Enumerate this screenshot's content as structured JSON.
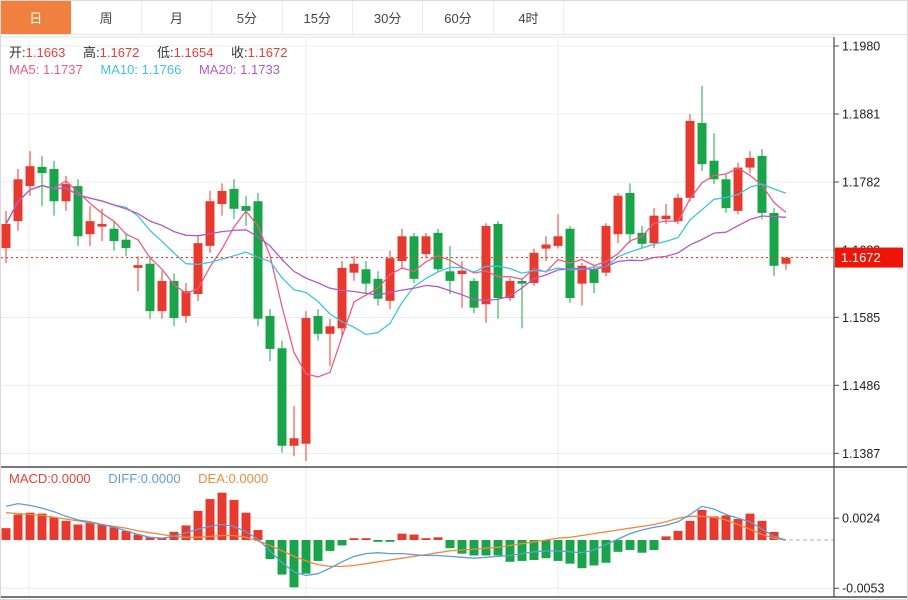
{
  "tabs": {
    "items": [
      {
        "id": "tab-day",
        "label": "日",
        "selected": true
      },
      {
        "id": "tab-week",
        "label": "周",
        "selected": false
      },
      {
        "id": "tab-month",
        "label": "月",
        "selected": false
      },
      {
        "id": "tab-5min",
        "label": "5分",
        "selected": false
      },
      {
        "id": "tab-15min",
        "label": "15分",
        "selected": false
      },
      {
        "id": "tab-30min",
        "label": "30分",
        "selected": false
      },
      {
        "id": "tab-60min",
        "label": "60分",
        "selected": false
      },
      {
        "id": "tab-4hour",
        "label": "4时",
        "selected": false
      }
    ]
  },
  "quote": {
    "open_label": "开:",
    "open": "1.1663",
    "high_label": "高:",
    "high": "1.1672",
    "low_label": "低:",
    "low": "1.1654",
    "close_label": "收:",
    "close": "1.1672"
  },
  "ma_readout": {
    "ma5_label": "MA5:",
    "ma5": "1.1737",
    "ma10_label": "MA10:",
    "ma10": "1.1766",
    "ma20_label": "MA20:",
    "ma20": "1.1733"
  },
  "macd_readout": {
    "macd_label": "MACD:",
    "macd": "0.0000",
    "diff_label": "DIFF:",
    "diff": "0.0000",
    "dea_label": "DEA:",
    "dea": "0.0000"
  },
  "colors": {
    "up": "#e8392e",
    "down": "#1aa449",
    "value_red": "#e2413a",
    "ma5": "#ec5c86",
    "ma10": "#42c3dc",
    "ma20": "#b25cc4",
    "diff_line": "#5f9dd8",
    "dea_line": "#ee8a3e",
    "tab_selected_bg": "#f0803f",
    "price_tag_bg": "#ec1508",
    "price_tag_text": "#ffffff",
    "grid": "#ececec",
    "axis": "#4a4a4a",
    "axis_text": "#222222",
    "dotted_price_line": "#f23b2e",
    "macd_zero_dash": "#a9c6d7"
  },
  "chart_data": {
    "type": "candlestick+macd",
    "title": "",
    "x_axis_labels": [],
    "main": {
      "y_axis_labels": [
        "1.1980",
        "1.1881",
        "1.1782",
        "1.1683",
        "1.1585",
        "1.1486",
        "1.1387"
      ],
      "current_price": "1.1672",
      "ma_periods": [
        5,
        10,
        20
      ],
      "legend": {
        "up_means": "rise(red)",
        "down_means": "fall(green)"
      },
      "candles_ohlc": [
        [
          1.1686,
          1.174,
          1.1664,
          1.1721
        ],
        [
          1.1725,
          1.1801,
          1.1711,
          1.1786
        ],
        [
          1.1776,
          1.1827,
          1.1762,
          1.1805
        ],
        [
          1.1804,
          1.182,
          1.1747,
          1.1795
        ],
        [
          1.1801,
          1.1813,
          1.1733,
          1.1754
        ],
        [
          1.1754,
          1.1791,
          1.174,
          1.1779
        ],
        [
          1.1776,
          1.1786,
          1.1689,
          1.1703
        ],
        [
          1.1706,
          1.1747,
          1.1689,
          1.1725
        ],
        [
          1.1717,
          1.1743,
          1.1696,
          1.1721
        ],
        [
          1.1714,
          1.1725,
          1.1682,
          1.1696
        ],
        [
          1.1698,
          1.1708,
          1.1674,
          1.1686
        ],
        [
          1.1657,
          1.1674,
          1.1623,
          1.1661
        ],
        [
          1.1663,
          1.1674,
          1.1583,
          1.1594
        ],
        [
          1.1594,
          1.1652,
          1.1583,
          1.1638
        ],
        [
          1.1638,
          1.1649,
          1.1572,
          1.1584
        ],
        [
          1.1587,
          1.1635,
          1.1577,
          1.1623
        ],
        [
          1.1619,
          1.1703,
          1.1609,
          1.1693
        ],
        [
          1.1689,
          1.1769,
          1.1679,
          1.1754
        ],
        [
          1.175,
          1.178,
          1.1733,
          1.1769
        ],
        [
          1.1772,
          1.1786,
          1.1728,
          1.1743
        ],
        [
          1.1747,
          1.1762,
          1.1718,
          1.174
        ],
        [
          1.1754,
          1.1766,
          1.1572,
          1.1583
        ],
        [
          1.1587,
          1.1597,
          1.1521,
          1.1539
        ],
        [
          1.154,
          1.1551,
          1.1388,
          1.1398
        ],
        [
          1.1398,
          1.1456,
          1.1383,
          1.1409
        ],
        [
          1.1401,
          1.1594,
          1.1376,
          1.1584
        ],
        [
          1.1587,
          1.1597,
          1.1551,
          1.1561
        ],
        [
          1.1561,
          1.1583,
          1.1514,
          1.1572
        ],
        [
          1.1569,
          1.1667,
          1.1558,
          1.1657
        ],
        [
          1.165,
          1.1674,
          1.1638,
          1.1663
        ],
        [
          1.1655,
          1.1667,
          1.162,
          1.1634
        ],
        [
          1.1641,
          1.1652,
          1.1602,
          1.1612
        ],
        [
          1.1609,
          1.1682,
          1.1597,
          1.1671
        ],
        [
          1.1667,
          1.1714,
          1.1655,
          1.1703
        ],
        [
          1.1703,
          1.1708,
          1.1635,
          1.1641
        ],
        [
          1.1677,
          1.1708,
          1.1671,
          1.1703
        ],
        [
          1.1708,
          1.1714,
          1.165,
          1.1655
        ],
        [
          1.1652,
          1.1689,
          1.1619,
          1.1638
        ],
        [
          1.1648,
          1.1667,
          1.1599,
          1.1653
        ],
        [
          1.1638,
          1.1642,
          1.1591,
          1.1599
        ],
        [
          1.1604,
          1.1722,
          1.1577,
          1.1718
        ],
        [
          1.1721,
          1.1725,
          1.1583,
          1.1613
        ],
        [
          1.1613,
          1.1642,
          1.1609,
          1.1638
        ],
        [
          1.1638,
          1.1642,
          1.1569,
          1.1634
        ],
        [
          1.1635,
          1.1685,
          1.1631,
          1.1679
        ],
        [
          1.1685,
          1.1703,
          1.1667,
          1.1691
        ],
        [
          1.1689,
          1.1735,
          1.1685,
          1.1703
        ],
        [
          1.1714,
          1.1718,
          1.1606,
          1.1613
        ],
        [
          1.1634,
          1.1664,
          1.1602,
          1.166
        ],
        [
          1.1655,
          1.166,
          1.162,
          1.1635
        ],
        [
          1.165,
          1.1722,
          1.1645,
          1.1718
        ],
        [
          1.1706,
          1.1766,
          1.1693,
          1.1762
        ],
        [
          1.1766,
          1.178,
          1.1693,
          1.1706
        ],
        [
          1.1708,
          1.1718,
          1.1685,
          1.1692
        ],
        [
          1.1693,
          1.1744,
          1.1686,
          1.1733
        ],
        [
          1.1728,
          1.175,
          1.1721,
          1.1733
        ],
        [
          1.1725,
          1.1765,
          1.1721,
          1.1759
        ],
        [
          1.1759,
          1.1881,
          1.1754,
          1.1871
        ],
        [
          1.1868,
          1.1922,
          1.1798,
          1.1808
        ],
        [
          1.1813,
          1.1853,
          1.1779,
          1.1786
        ],
        [
          1.1786,
          1.1794,
          1.1737,
          1.1744
        ],
        [
          1.174,
          1.181,
          1.1735,
          1.1803
        ],
        [
          1.1803,
          1.1827,
          1.1795,
          1.1817
        ],
        [
          1.182,
          1.183,
          1.1728,
          1.1737
        ],
        [
          1.1737,
          1.1744,
          1.1645,
          1.166
        ],
        [
          1.1663,
          1.1672,
          1.1654,
          1.1672
        ]
      ]
    },
    "macd": {
      "y_axis_labels": [
        "0.0024",
        "-0.0053"
      ],
      "histogram": [
        0.0013,
        0.0028,
        0.003,
        0.0029,
        0.0025,
        0.0021,
        0.0017,
        0.0019,
        0.0017,
        0.0014,
        0.001,
        0.0006,
        0.0003,
        0.0002,
        0.0009,
        0.0016,
        0.0032,
        0.0045,
        0.0052,
        0.0044,
        0.003,
        0.0011,
        -0.0021,
        -0.0038,
        -0.0052,
        -0.0037,
        -0.0023,
        -0.0012,
        -0.0006,
        0.0002,
        0.0002,
        -0.0002,
        -0.0002,
        0.0007,
        0.0006,
        0.0002,
        0.0003,
        -0.0009,
        -0.0015,
        -0.0017,
        -0.0017,
        -0.0017,
        -0.0024,
        -0.0023,
        -0.0022,
        -0.002,
        -0.0023,
        -0.0026,
        -0.0031,
        -0.0028,
        -0.0025,
        -0.0013,
        -0.0011,
        -0.0014,
        -0.0011,
        0.0004,
        0.001,
        0.0021,
        0.0033,
        0.0026,
        0.0027,
        0.0023,
        0.0029,
        0.0021,
        0.0009,
        0.0
      ],
      "diff_line": [
        0.0037,
        0.004,
        0.0038,
        0.0035,
        0.0031,
        0.0026,
        0.0022,
        0.002,
        0.0017,
        0.0014,
        0.001,
        0.0006,
        0.0003,
        0.0002,
        0.0004,
        0.0008,
        0.0012,
        0.0015,
        0.0017,
        0.0015,
        0.0009,
        0.0001,
        -0.0012,
        -0.0025,
        -0.0035,
        -0.0039,
        -0.0037,
        -0.0031,
        -0.0024,
        -0.0018,
        -0.0015,
        -0.0014,
        -0.0015,
        -0.0015,
        -0.0016,
        -0.0017,
        -0.0017,
        -0.0018,
        -0.0019,
        -0.002,
        -0.0019,
        -0.0018,
        -0.0017,
        -0.0015,
        -0.0013,
        -0.0012,
        -0.0012,
        -0.0013,
        -0.0014,
        -0.0011,
        -0.0005,
        0.0001,
        0.0007,
        0.0011,
        0.0014,
        0.0016,
        0.002,
        0.0028,
        0.0037,
        0.0034,
        0.0028,
        0.0024,
        0.002,
        0.0012,
        0.0004,
        0.0
      ],
      "dea_line": [
        0.003,
        0.0029,
        0.0028,
        0.0027,
        0.0025,
        0.0023,
        0.0021,
        0.0019,
        0.0017,
        0.0015,
        0.0013,
        0.001,
        0.0008,
        0.0006,
        0.0004,
        0.0003,
        0.0003,
        0.0004,
        0.0005,
        0.0005,
        0.0003,
        -0.0001,
        -0.0006,
        -0.0012,
        -0.0018,
        -0.0023,
        -0.0027,
        -0.0029,
        -0.0029,
        -0.0028,
        -0.0026,
        -0.0024,
        -0.0022,
        -0.002,
        -0.0018,
        -0.0016,
        -0.0014,
        -0.0012,
        -0.0011,
        -0.001,
        -0.0009,
        -0.0008,
        -0.0006,
        -0.0004,
        -0.0002,
        0.0,
        0.0002,
        0.0003,
        0.0005,
        0.0007,
        0.0009,
        0.0011,
        0.0013,
        0.0015,
        0.0017,
        0.002,
        0.0024,
        0.0026,
        0.0026,
        0.0025,
        0.0022,
        0.0017,
        0.0012,
        0.0006,
        0.0002,
        0.0
      ]
    }
  }
}
